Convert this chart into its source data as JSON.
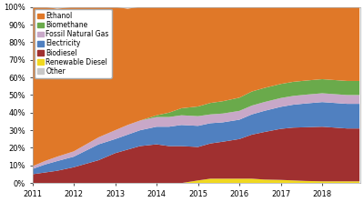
{
  "years": [
    2011.0,
    2011.3,
    2011.6,
    2012.0,
    2012.3,
    2012.6,
    2013.0,
    2013.3,
    2013.6,
    2014.0,
    2014.3,
    2014.6,
    2015.0,
    2015.3,
    2015.6,
    2016.0,
    2016.3,
    2016.6,
    2017.0,
    2017.3,
    2017.6,
    2018.0,
    2018.3,
    2018.6,
    2018.9
  ],
  "labels": [
    "Ethanol",
    "Biomethane",
    "Fossil Natural Gas",
    "Electricity",
    "Biodiesel",
    "Renewable Diesel",
    "Other"
  ],
  "colors": [
    "#E07828",
    "#6AAA4B",
    "#C8A8C8",
    "#5080C0",
    "#A03030",
    "#F0D820",
    "#C8C8C8"
  ],
  "data": {
    "Renewable Diesel": [
      0.0,
      0.0,
      0.0,
      0.0,
      0.0,
      0.0,
      0.0,
      0.0,
      0.0,
      0.0,
      0.0,
      0.0,
      1.5,
      2.5,
      2.5,
      2.5,
      2.5,
      2.0,
      1.8,
      1.5,
      1.2,
      1.0,
      1.0,
      1.0,
      1.0
    ],
    "Biodiesel": [
      5.0,
      6.0,
      7.0,
      9.0,
      11.0,
      13.0,
      17.0,
      19.0,
      21.0,
      22.0,
      21.0,
      21.0,
      19.0,
      20.0,
      21.0,
      22.5,
      25.0,
      27.0,
      29.0,
      30.0,
      30.5,
      31.0,
      30.5,
      30.0,
      30.0
    ],
    "Electricity": [
      3.0,
      4.5,
      5.5,
      6.0,
      7.5,
      9.0,
      8.0,
      8.5,
      9.0,
      10.0,
      11.0,
      12.0,
      12.0,
      11.5,
      11.0,
      11.0,
      11.5,
      12.0,
      12.5,
      13.0,
      13.5,
      14.0,
      14.0,
      14.0,
      14.0
    ],
    "Fossil Natural Gas": [
      1.5,
      2.0,
      2.5,
      3.0,
      3.5,
      4.0,
      5.0,
      5.5,
      5.5,
      5.5,
      5.5,
      5.5,
      5.5,
      5.0,
      5.0,
      5.0,
      5.0,
      5.0,
      5.0,
      5.0,
      5.0,
      5.0,
      5.0,
      5.0,
      5.0
    ],
    "Biomethane": [
      0.0,
      0.0,
      0.0,
      0.0,
      0.0,
      0.0,
      0.0,
      0.0,
      0.0,
      1.0,
      2.5,
      4.0,
      5.5,
      6.5,
      7.0,
      7.5,
      8.0,
      8.0,
      8.0,
      8.0,
      8.0,
      8.0,
      8.0,
      8.0,
      8.0
    ],
    "Ethanol": [
      90.5,
      87.5,
      84.0,
      82.0,
      78.0,
      74.0,
      70.0,
      66.0,
      64.5,
      61.5,
      60.0,
      57.5,
      56.5,
      55.5,
      54.0,
      51.5,
      48.0,
      46.0,
      43.7,
      42.5,
      41.8,
      41.0,
      41.5,
      42.0,
      42.0
    ]
  },
  "xlim": [
    2011.0,
    2018.917
  ],
  "ylim": [
    0,
    100
  ],
  "yticks": [
    0,
    10,
    20,
    30,
    40,
    50,
    60,
    70,
    80,
    90,
    100
  ],
  "ytick_labels": [
    "0%",
    "10%",
    "20%",
    "30%",
    "40%",
    "50%",
    "60%",
    "70%",
    "80%",
    "90%",
    "100%"
  ],
  "xtick_positions": [
    2011,
    2012,
    2013,
    2014,
    2015,
    2016,
    2017,
    2018
  ],
  "xtick_labels": [
    "2011",
    "2012",
    "2013",
    "2014",
    "2015",
    "2016",
    "2017",
    "2018"
  ],
  "background_color": "#FFFFFF",
  "legend_fontsize": 5.5,
  "axis_fontsize": 6
}
